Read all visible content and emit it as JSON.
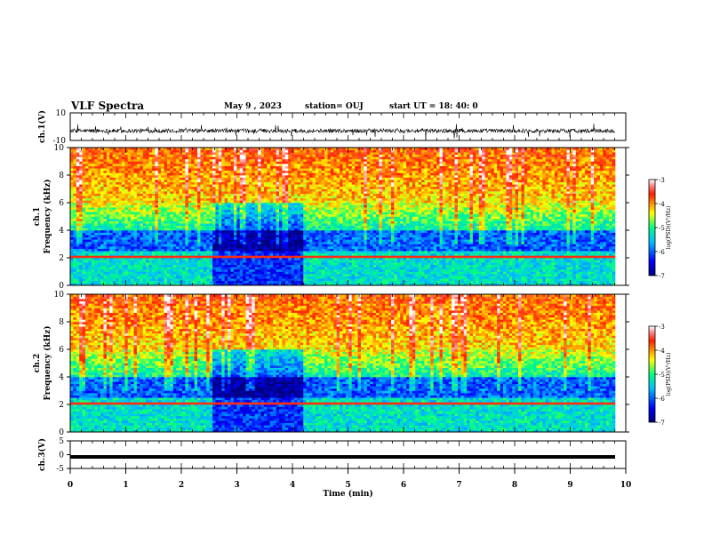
{
  "header": {
    "title": "VLF Spectra",
    "date": "May 9 , 2023",
    "station": "station= OUJ",
    "start": "start UT = 18: 40: 0"
  },
  "chart_data": [
    {
      "type": "line",
      "panel": "ch1-waveform",
      "ylabel": "ch.1(V)",
      "yticks": [
        "10",
        "-10"
      ],
      "ylim": [
        -10,
        10
      ],
      "xlim": [
        0,
        10
      ]
    },
    {
      "type": "heatmap",
      "panel": "ch1-spectrogram",
      "ylabel": "ch.1\nFrequency (kHz)",
      "ylabel_lines": [
        "ch.1",
        "Frequency (kHz)"
      ],
      "ylim": [
        0,
        10
      ],
      "yticks": [
        "0",
        "2",
        "4",
        "6",
        "8",
        "10"
      ],
      "xlim": [
        0,
        9.83
      ],
      "quiet_interval_min": [
        2.55,
        4.15
      ],
      "colorbar": {
        "label": "log(PSD)(V²/Hz)",
        "ticks": [
          "-3",
          "-4",
          "-5",
          "-6",
          "-7"
        ],
        "range": [
          -7,
          -3
        ]
      }
    },
    {
      "type": "heatmap",
      "panel": "ch2-spectrogram",
      "ylabel": "ch.2\nFrequency (kHz)",
      "ylabel_lines": [
        "ch.2",
        "Frequency (kHz)"
      ],
      "ylim": [
        0,
        10
      ],
      "yticks": [
        "0",
        "2",
        "4",
        "6",
        "8",
        "10"
      ],
      "xlim": [
        0,
        9.83
      ],
      "quiet_interval_min": [
        2.55,
        4.15
      ],
      "colorbar": {
        "label": "log(PSD)(V²/Hz)",
        "ticks": [
          "-3",
          "-4",
          "-5",
          "-6",
          "-7"
        ],
        "range": [
          -7,
          -3
        ]
      }
    },
    {
      "type": "line",
      "panel": "ch3-level",
      "ylabel": "ch.3(V)",
      "yticks": [
        "5",
        "0",
        "-5"
      ],
      "ylim": [
        -5,
        5
      ],
      "value": -0.8,
      "xlabel": "Time (min)",
      "xticks": [
        "0",
        "1",
        "2",
        "3",
        "4",
        "5",
        "6",
        "7",
        "8",
        "9",
        "10"
      ],
      "xlim": [
        0,
        10
      ]
    }
  ]
}
